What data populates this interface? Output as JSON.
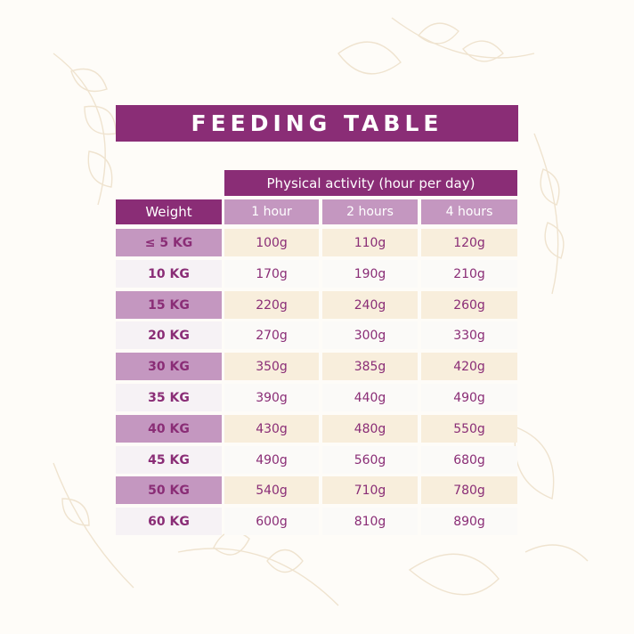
{
  "title": "FEEDING TABLE",
  "activity_header": "Physical activity (hour per day)",
  "weight_header": "Weight",
  "columns": [
    "1 hour",
    "2 hours",
    "4 hours"
  ],
  "rows": [
    {
      "weight": "≤ 5 KG",
      "values": [
        "100g",
        "110g",
        "120g"
      ]
    },
    {
      "weight": "10 KG",
      "values": [
        "170g",
        "190g",
        "210g"
      ]
    },
    {
      "weight": "15 KG",
      "values": [
        "220g",
        "240g",
        "260g"
      ]
    },
    {
      "weight": "20 KG",
      "values": [
        "270g",
        "300g",
        "330g"
      ]
    },
    {
      "weight": "30 KG",
      "values": [
        "350g",
        "385g",
        "420g"
      ]
    },
    {
      "weight": "35 KG",
      "values": [
        "390g",
        "440g",
        "490g"
      ]
    },
    {
      "weight": "40 KG",
      "values": [
        "430g",
        "480g",
        "550g"
      ]
    },
    {
      "weight": "45 KG",
      "values": [
        "490g",
        "560g",
        "680g"
      ]
    },
    {
      "weight": "50 KG",
      "values": [
        "540g",
        "710g",
        "780g"
      ]
    },
    {
      "weight": "60 KG",
      "values": [
        "600g",
        "810g",
        "890g"
      ]
    }
  ],
  "colors": {
    "primary": "#8a2d76",
    "light_purple": "#c497c0",
    "cream": "#f8eedc"
  }
}
